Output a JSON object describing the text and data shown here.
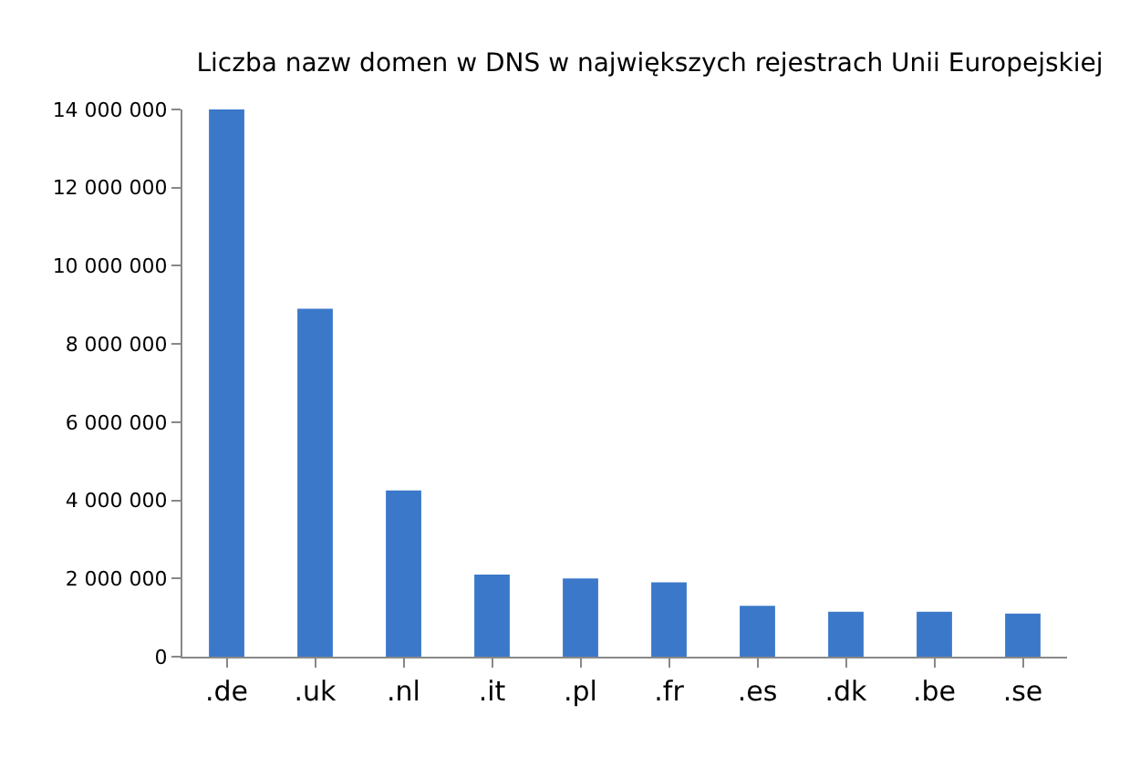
{
  "chart_data": {
    "type": "bar",
    "title": "Liczba nazw domen w DNS w największych rejestrach Unii Europejskiej",
    "categories": [
      ".de",
      ".uk",
      ".nl",
      ".it",
      ".pl",
      ".fr",
      ".es",
      ".dk",
      ".be",
      ".se"
    ],
    "values": [
      14000000,
      8900000,
      4250000,
      2100000,
      2000000,
      1900000,
      1300000,
      1150000,
      1150000,
      1100000
    ],
    "color": "#3b78c9",
    "ylim": [
      0,
      14000000
    ],
    "yticks": [
      {
        "value": 0,
        "label": "0"
      },
      {
        "value": 2000000,
        "label": "2 000 000"
      },
      {
        "value": 4000000,
        "label": "4 000 000"
      },
      {
        "value": 6000000,
        "label": "6 000 000"
      },
      {
        "value": 8000000,
        "label": "8 000 000"
      },
      {
        "value": 10000000,
        "label": "10 000 000"
      },
      {
        "value": 12000000,
        "label": "12 000 000"
      },
      {
        "value": 14000000,
        "label": "14 000 000"
      }
    ],
    "grid": false
  }
}
